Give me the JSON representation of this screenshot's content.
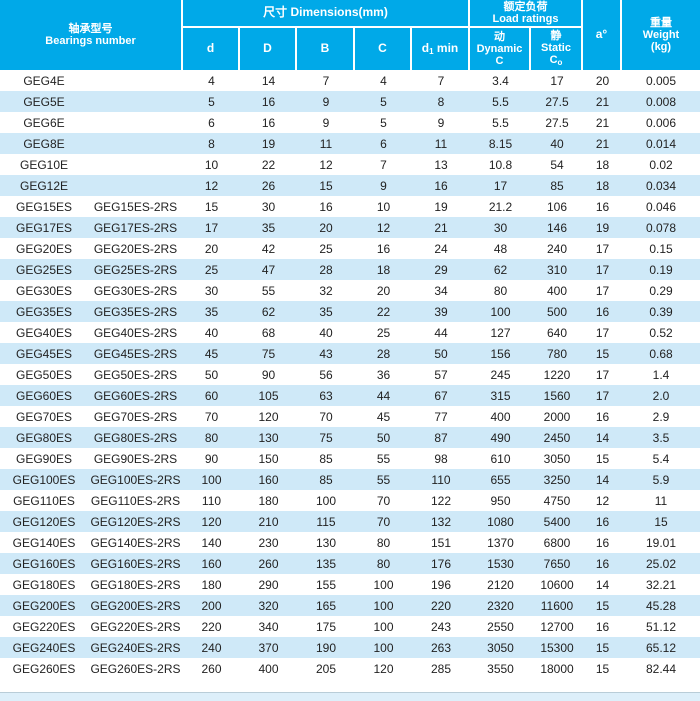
{
  "table": {
    "header": {
      "bearings_cn": "轴承型号",
      "bearings_en": "Bearings number",
      "dimensions_label": "尺寸  Dimensions(mm)",
      "load_cn": "额定负荷",
      "load_en": "Load ratings",
      "col_d": "d",
      "col_D": "D",
      "col_B": "B",
      "col_C": "C",
      "d1_main": "d",
      "d1_sub": "1",
      "d1_tail": " min",
      "dynamic_cn": "动",
      "dynamic_en": "Dynamic",
      "dynamic_sym": "C",
      "static_cn": "静",
      "static_en": "Static",
      "static_sym_main": "C",
      "static_sym_sub": "o",
      "angle_label": "a°",
      "weight_cn": "重量",
      "weight_en": "Weight",
      "weight_unit": "(kg)"
    },
    "colors": {
      "header_bg": "#00a9e8",
      "header_text": "#ffffff",
      "row_alt_bg": "#cfe9f8",
      "row_bg": "#ffffff",
      "data_text": "#222222"
    },
    "rows": [
      {
        "model": "GEG4E",
        "model2": "",
        "d": "4",
        "D": "14",
        "B": "7",
        "C": "4",
        "d1_min": "7",
        "dynamic_c": "3.4",
        "static_co": "17",
        "a": "20",
        "weight": "0.005"
      },
      {
        "model": "GEG5E",
        "model2": "",
        "d": "5",
        "D": "16",
        "B": "9",
        "C": "5",
        "d1_min": "8",
        "dynamic_c": "5.5",
        "static_co": "27.5",
        "a": "21",
        "weight": "0.008"
      },
      {
        "model": "GEG6E",
        "model2": "",
        "d": "6",
        "D": "16",
        "B": "9",
        "C": "5",
        "d1_min": "9",
        "dynamic_c": "5.5",
        "static_co": "27.5",
        "a": "21",
        "weight": "0.006"
      },
      {
        "model": "GEG8E",
        "model2": "",
        "d": "8",
        "D": "19",
        "B": "11",
        "C": "6",
        "d1_min": "11",
        "dynamic_c": "8.15",
        "static_co": "40",
        "a": "21",
        "weight": "0.014"
      },
      {
        "model": "GEG10E",
        "model2": "",
        "d": "10",
        "D": "22",
        "B": "12",
        "C": "7",
        "d1_min": "13",
        "dynamic_c": "10.8",
        "static_co": "54",
        "a": "18",
        "weight": "0.02"
      },
      {
        "model": "GEG12E",
        "model2": "",
        "d": "12",
        "D": "26",
        "B": "15",
        "C": "9",
        "d1_min": "16",
        "dynamic_c": "17",
        "static_co": "85",
        "a": "18",
        "weight": "0.034"
      },
      {
        "model": "GEG15ES",
        "model2": "GEG15ES-2RS",
        "d": "15",
        "D": "30",
        "B": "16",
        "C": "10",
        "d1_min": "19",
        "dynamic_c": "21.2",
        "static_co": "106",
        "a": "16",
        "weight": "0.046"
      },
      {
        "model": "GEG17ES",
        "model2": "GEG17ES-2RS",
        "d": "17",
        "D": "35",
        "B": "20",
        "C": "12",
        "d1_min": "21",
        "dynamic_c": "30",
        "static_co": "146",
        "a": "19",
        "weight": "0.078"
      },
      {
        "model": "GEG20ES",
        "model2": "GEG20ES-2RS",
        "d": "20",
        "D": "42",
        "B": "25",
        "C": "16",
        "d1_min": "24",
        "dynamic_c": "48",
        "static_co": "240",
        "a": "17",
        "weight": "0.15"
      },
      {
        "model": "GEG25ES",
        "model2": "GEG25ES-2RS",
        "d": "25",
        "D": "47",
        "B": "28",
        "C": "18",
        "d1_min": "29",
        "dynamic_c": "62",
        "static_co": "310",
        "a": "17",
        "weight": "0.19"
      },
      {
        "model": "GEG30ES",
        "model2": "GEG30ES-2RS",
        "d": "30",
        "D": "55",
        "B": "32",
        "C": "20",
        "d1_min": "34",
        "dynamic_c": "80",
        "static_co": "400",
        "a": "17",
        "weight": "0.29"
      },
      {
        "model": "GEG35ES",
        "model2": "GEG35ES-2RS",
        "d": "35",
        "D": "62",
        "B": "35",
        "C": "22",
        "d1_min": "39",
        "dynamic_c": "100",
        "static_co": "500",
        "a": "16",
        "weight": "0.39"
      },
      {
        "model": "GEG40ES",
        "model2": "GEG40ES-2RS",
        "d": "40",
        "D": "68",
        "B": "40",
        "C": "25",
        "d1_min": "44",
        "dynamic_c": "127",
        "static_co": "640",
        "a": "17",
        "weight": "0.52"
      },
      {
        "model": "GEG45ES",
        "model2": "GEG45ES-2RS",
        "d": "45",
        "D": "75",
        "B": "43",
        "C": "28",
        "d1_min": "50",
        "dynamic_c": "156",
        "static_co": "780",
        "a": "15",
        "weight": "0.68"
      },
      {
        "model": "GEG50ES",
        "model2": "GEG50ES-2RS",
        "d": "50",
        "D": "90",
        "B": "56",
        "C": "36",
        "d1_min": "57",
        "dynamic_c": "245",
        "static_co": "1220",
        "a": "17",
        "weight": "1.4"
      },
      {
        "model": "GEG60ES",
        "model2": "GEG60ES-2RS",
        "d": "60",
        "D": "105",
        "B": "63",
        "C": "44",
        "d1_min": "67",
        "dynamic_c": "315",
        "static_co": "1560",
        "a": "17",
        "weight": "2.0"
      },
      {
        "model": "GEG70ES",
        "model2": "GEG70ES-2RS",
        "d": "70",
        "D": "120",
        "B": "70",
        "C": "45",
        "d1_min": "77",
        "dynamic_c": "400",
        "static_co": "2000",
        "a": "16",
        "weight": "2.9"
      },
      {
        "model": "GEG80ES",
        "model2": "GEG80ES-2RS",
        "d": "80",
        "D": "130",
        "B": "75",
        "C": "50",
        "d1_min": "87",
        "dynamic_c": "490",
        "static_co": "2450",
        "a": "14",
        "weight": "3.5"
      },
      {
        "model": "GEG90ES",
        "model2": "GEG90ES-2RS",
        "d": "90",
        "D": "150",
        "B": "85",
        "C": "55",
        "d1_min": "98",
        "dynamic_c": "610",
        "static_co": "3050",
        "a": "15",
        "weight": "5.4"
      },
      {
        "model": "GEG100ES",
        "model2": "GEG100ES-2RS",
        "d": "100",
        "D": "160",
        "B": "85",
        "C": "55",
        "d1_min": "110",
        "dynamic_c": "655",
        "static_co": "3250",
        "a": "14",
        "weight": "5.9"
      },
      {
        "model": "GEG110ES",
        "model2": "GEG110ES-2RS",
        "d": "110",
        "D": "180",
        "B": "100",
        "C": "70",
        "d1_min": "122",
        "dynamic_c": "950",
        "static_co": "4750",
        "a": "12",
        "weight": "11"
      },
      {
        "model": "GEG120ES",
        "model2": "GEG120ES-2RS",
        "d": "120",
        "D": "210",
        "B": "115",
        "C": "70",
        "d1_min": "132",
        "dynamic_c": "1080",
        "static_co": "5400",
        "a": "16",
        "weight": "15"
      },
      {
        "model": "GEG140ES",
        "model2": "GEG140ES-2RS",
        "d": "140",
        "D": "230",
        "B": "130",
        "C": "80",
        "d1_min": "151",
        "dynamic_c": "1370",
        "static_co": "6800",
        "a": "16",
        "weight": "19.01"
      },
      {
        "model": "GEG160ES",
        "model2": "GEG160ES-2RS",
        "d": "160",
        "D": "260",
        "B": "135",
        "C": "80",
        "d1_min": "176",
        "dynamic_c": "1530",
        "static_co": "7650",
        "a": "16",
        "weight": "25.02"
      },
      {
        "model": "GEG180ES",
        "model2": "GEG180ES-2RS",
        "d": "180",
        "D": "290",
        "B": "155",
        "C": "100",
        "d1_min": "196",
        "dynamic_c": "2120",
        "static_co": "10600",
        "a": "14",
        "weight": "32.21"
      },
      {
        "model": "GEG200ES",
        "model2": "GEG200ES-2RS",
        "d": "200",
        "D": "320",
        "B": "165",
        "C": "100",
        "d1_min": "220",
        "dynamic_c": "2320",
        "static_co": "11600",
        "a": "15",
        "weight": "45.28"
      },
      {
        "model": "GEG220ES",
        "model2": "GEG220ES-2RS",
        "d": "220",
        "D": "340",
        "B": "175",
        "C": "100",
        "d1_min": "243",
        "dynamic_c": "2550",
        "static_co": "12700",
        "a": "16",
        "weight": "51.12"
      },
      {
        "model": "GEG240ES",
        "model2": "GEG240ES-2RS",
        "d": "240",
        "D": "370",
        "B": "190",
        "C": "100",
        "d1_min": "263",
        "dynamic_c": "3050",
        "static_co": "15300",
        "a": "15",
        "weight": "65.12"
      },
      {
        "model": "GEG260ES",
        "model2": "GEG260ES-2RS",
        "d": "260",
        "D": "400",
        "B": "205",
        "C": "120",
        "d1_min": "285",
        "dynamic_c": "3550",
        "static_co": "18000",
        "a": "15",
        "weight": "82.44"
      }
    ]
  }
}
